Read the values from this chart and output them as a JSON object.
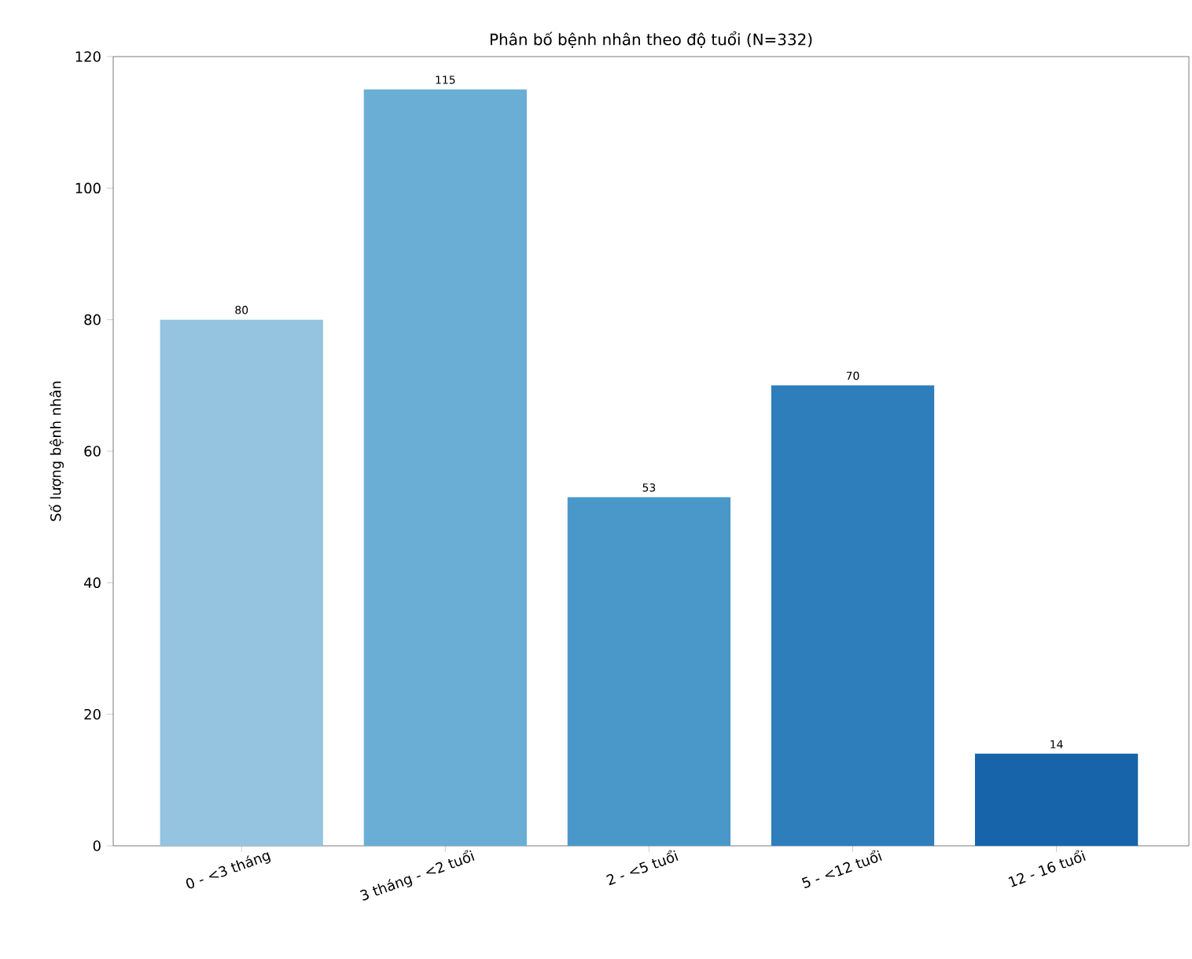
{
  "chart_data": {
    "type": "bar",
    "title": "Phân bố bệnh nhân theo độ tuổi (N=332)",
    "ylabel": "Số lượng bệnh nhân",
    "categories": [
      "0 - <3 tháng",
      "3 tháng - <2 tuổi",
      "2 - <5 tuổi",
      "5 - <12 tuổi",
      "12 - 16 tuổi"
    ],
    "values": [
      80,
      115,
      53,
      70,
      14
    ],
    "colors": [
      "#94c4df",
      "#6aaed6",
      "#4a98c9",
      "#2e7ebc",
      "#1764ab"
    ],
    "ylim": [
      0,
      120
    ],
    "yticks": [
      0,
      20,
      40,
      60,
      80,
      100,
      120
    ],
    "data_labels": true,
    "grid": false
  }
}
